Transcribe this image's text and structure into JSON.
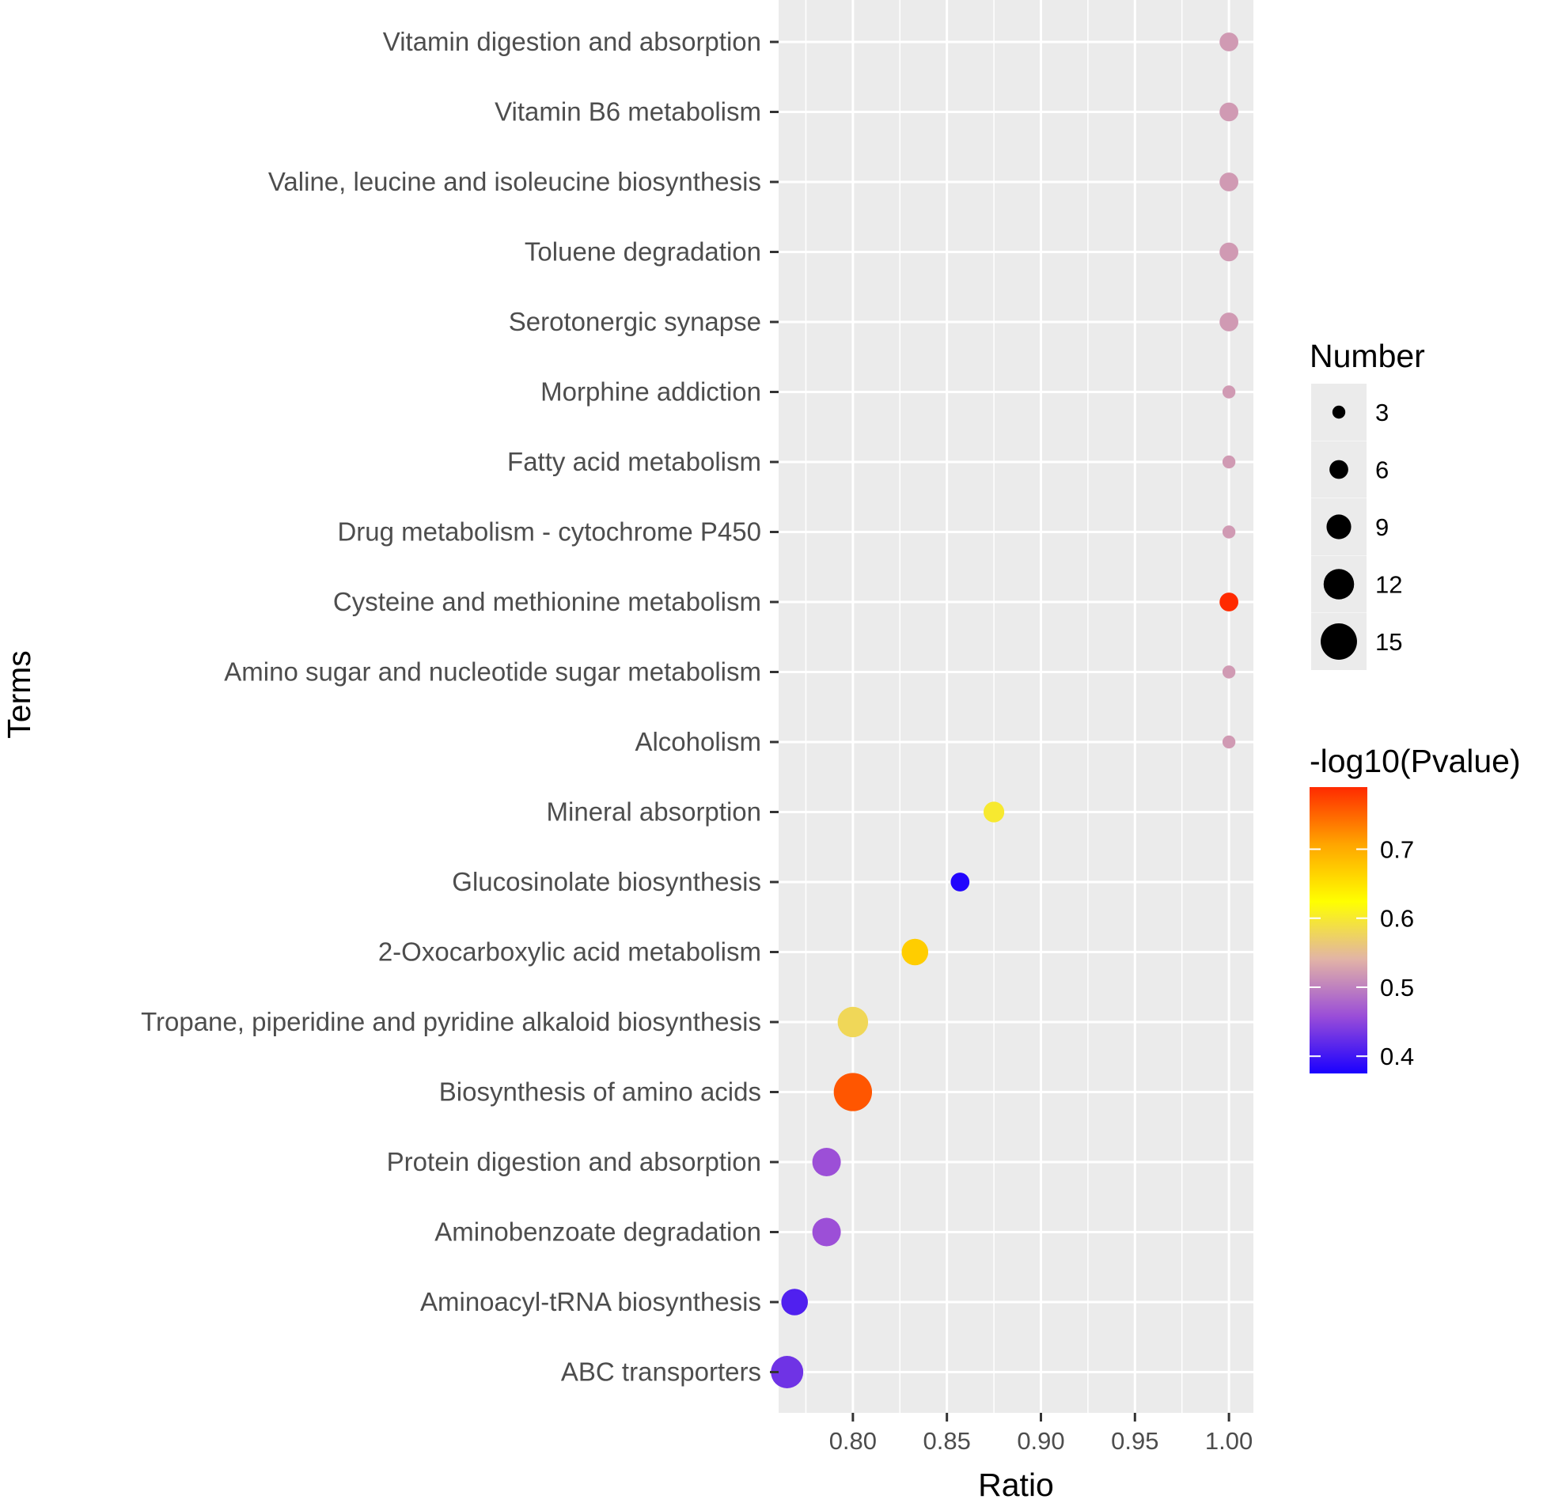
{
  "chart_data": {
    "type": "scatter",
    "xlabel": "Ratio",
    "ylabel": "Terms",
    "xlim": [
      0.7605,
      1.013
    ],
    "x_ticks": [
      "0.80",
      "0.85",
      "0.90",
      "0.95",
      "1.00"
    ],
    "x_tick_values": [
      0.8,
      0.85,
      0.9,
      0.95,
      1.0
    ],
    "grid": true,
    "terms": [
      {
        "term": "Vitamin digestion and absorption",
        "ratio": 1.0,
        "number": 6,
        "neg_log10_pvalue": 0.52
      },
      {
        "term": "Vitamin B6 metabolism",
        "ratio": 1.0,
        "number": 6,
        "neg_log10_pvalue": 0.52
      },
      {
        "term": "Valine, leucine and isoleucine biosynthesis",
        "ratio": 1.0,
        "number": 6,
        "neg_log10_pvalue": 0.52
      },
      {
        "term": "Toluene degradation",
        "ratio": 1.0,
        "number": 6,
        "neg_log10_pvalue": 0.52
      },
      {
        "term": "Serotonergic synapse",
        "ratio": 1.0,
        "number": 6,
        "neg_log10_pvalue": 0.52
      },
      {
        "term": "Morphine addiction",
        "ratio": 1.0,
        "number": 3,
        "neg_log10_pvalue": 0.52
      },
      {
        "term": "Fatty acid metabolism",
        "ratio": 1.0,
        "number": 3,
        "neg_log10_pvalue": 0.52
      },
      {
        "term": "Drug metabolism - cytochrome P450",
        "ratio": 1.0,
        "number": 3,
        "neg_log10_pvalue": 0.52
      },
      {
        "term": "Cysteine and methionine metabolism",
        "ratio": 1.0,
        "number": 6,
        "neg_log10_pvalue": 0.79
      },
      {
        "term": "Amino sugar and nucleotide sugar metabolism",
        "ratio": 1.0,
        "number": 3,
        "neg_log10_pvalue": 0.52
      },
      {
        "term": "Alcoholism",
        "ratio": 1.0,
        "number": 3,
        "neg_log10_pvalue": 0.52
      },
      {
        "term": "Mineral absorption",
        "ratio": 0.875,
        "number": 7,
        "neg_log10_pvalue": 0.6
      },
      {
        "term": "Glucosinolate biosynthesis",
        "ratio": 0.857,
        "number": 6,
        "neg_log10_pvalue": 0.38
      },
      {
        "term": "2-Oxocarboxylic acid metabolism",
        "ratio": 0.833,
        "number": 10,
        "neg_log10_pvalue": 0.67
      },
      {
        "term": "Tropane, piperidine and pyridine alkaloid biosynthesis",
        "ratio": 0.8,
        "number": 12,
        "neg_log10_pvalue": 0.58
      },
      {
        "term": "Biosynthesis of amino acids",
        "ratio": 0.8,
        "number": 16,
        "neg_log10_pvalue": 0.76
      },
      {
        "term": "Protein digestion and absorption",
        "ratio": 0.786,
        "number": 11,
        "neg_log10_pvalue": 0.46
      },
      {
        "term": "Aminobenzoate degradation",
        "ratio": 0.786,
        "number": 11,
        "neg_log10_pvalue": 0.46
      },
      {
        "term": "Aminoacyl-tRNA biosynthesis",
        "ratio": 0.769,
        "number": 10,
        "neg_log10_pvalue": 0.41
      },
      {
        "term": "ABC transporters",
        "ratio": 0.765,
        "number": 13,
        "neg_log10_pvalue": 0.43
      }
    ],
    "size_legend": {
      "title": "Number",
      "values": [
        3,
        6,
        9,
        12,
        15
      ],
      "labels": [
        "3",
        "6",
        "9",
        "12",
        "15"
      ]
    },
    "color_legend": {
      "title": "-log10(Pvalue)",
      "range": [
        0.375,
        0.79
      ],
      "ticks": [
        0.4,
        0.5,
        0.6,
        0.7
      ],
      "labels": [
        "0.4",
        "0.5",
        "0.6",
        "0.7"
      ],
      "colors": [
        "#1a00ff",
        "#9a4dd8",
        "#e2b4a6",
        "#ffff00",
        "#ffa500",
        "#ff2a00"
      ]
    }
  }
}
